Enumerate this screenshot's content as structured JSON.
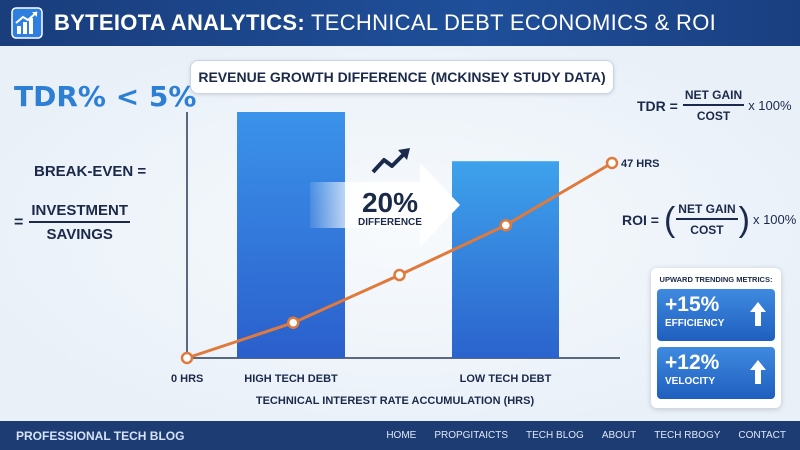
{
  "header": {
    "brand": "BYTEIOTA ANALYTICS:",
    "subtitle": "TECHNICAL DEBT ECONOMICS & ROI"
  },
  "left": {
    "tdr_target": "TDR% < 5%",
    "breakeven_label": "BREAK-EVEN =",
    "breakeven_eq": "=",
    "breakeven_numerator": "INVESTMENT",
    "breakeven_denominator": "SAVINGS"
  },
  "right": {
    "tdr_lhs": "TDR =",
    "tdr_numerator": "NET GAIN",
    "tdr_denominator": "COST",
    "tdr_rhs": "x 100%",
    "roi_lhs": "ROI =",
    "roi_open": "(",
    "roi_numerator": "NET GAIN",
    "roi_denominator": "COST",
    "roi_close": ")",
    "roi_rhs": "x 100%"
  },
  "chart_data": {
    "type": "bar",
    "title": "REVENUE GROWTH DIFFERENCE (MCKINSEY STUDY DATA)",
    "categories": [
      "HIGH TECH DEBT",
      "LOW TECH DEBT"
    ],
    "values": [
      100,
      80
    ],
    "xlabel": "TECHNICAL INTEREST RATE ACCUMULATION (HRS)",
    "ylabel": "",
    "ylim": [
      0,
      100
    ],
    "bar_colors": [
      "#2f7fe0",
      "#2f8fe6"
    ],
    "annotation": {
      "value": "20%",
      "label": "DIFFERENCE"
    },
    "line": {
      "color": "#e07a3c",
      "x": [
        0,
        1,
        2,
        3,
        4
      ],
      "y": [
        0,
        8.5,
        20,
        32,
        47
      ],
      "ylim": [
        0,
        50
      ],
      "start_label": "0 HRS",
      "end_label": "47 HRS"
    }
  },
  "metrics": {
    "heading": "UPWARD TRENDING METRICS:",
    "items": [
      {
        "value": "+15%",
        "label": "EFFICIENCY",
        "icon": "arrow-up-icon"
      },
      {
        "value": "+12%",
        "label": "VELOCITY",
        "icon": "arrow-up-icon"
      }
    ]
  },
  "footer": {
    "brand": "PROFESSIONAL TECH BLOG",
    "nav": [
      "HOME",
      "PROPGITAICTS",
      "TECH BLOG",
      "ABOUT",
      "TECH RBOGY",
      "CONTACT"
    ]
  },
  "colors": {
    "header_bg": "#1f4f9a",
    "footer_bg": "#1d3c73",
    "accent": "#2d7fd6",
    "trend_line": "#e07a3c"
  }
}
